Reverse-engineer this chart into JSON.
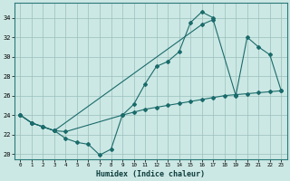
{
  "xlabel": "Humidex (Indice chaleur)",
  "xlim": [
    -0.5,
    23.5
  ],
  "ylim": [
    19.5,
    35.5
  ],
  "xticks": [
    0,
    1,
    2,
    3,
    4,
    5,
    6,
    7,
    8,
    9,
    10,
    11,
    12,
    13,
    14,
    15,
    16,
    17,
    18,
    19,
    20,
    21,
    22,
    23
  ],
  "yticks": [
    20,
    22,
    24,
    26,
    28,
    30,
    32,
    34
  ],
  "bg_color": "#cce8e4",
  "line_color": "#1a6b6b",
  "line1_x": [
    0,
    1,
    2,
    3,
    4,
    5,
    6,
    7,
    8,
    9,
    10,
    11,
    12,
    13,
    14,
    15,
    16,
    17
  ],
  "line1_y": [
    24.0,
    23.2,
    22.8,
    22.4,
    21.6,
    21.2,
    21.0,
    19.9,
    20.5,
    24.0,
    25.1,
    27.2,
    29.0,
    29.5,
    30.5,
    33.5,
    34.6,
    34.0
  ],
  "line2_x": [
    0,
    1,
    2,
    3,
    16,
    17,
    19,
    20,
    21,
    22,
    23
  ],
  "line2_y": [
    24.0,
    23.2,
    22.8,
    22.4,
    33.3,
    33.8,
    26.0,
    32.0,
    31.0,
    30.2,
    26.5
  ],
  "line3_x": [
    0,
    1,
    2,
    3,
    4,
    9,
    10,
    11,
    12,
    13,
    14,
    15,
    16,
    17,
    18,
    19,
    20,
    21,
    22,
    23
  ],
  "line3_y": [
    24.0,
    23.2,
    22.8,
    22.4,
    22.3,
    24.0,
    24.3,
    24.6,
    24.8,
    25.0,
    25.2,
    25.4,
    25.6,
    25.8,
    26.0,
    26.1,
    26.2,
    26.3,
    26.4,
    26.5
  ]
}
